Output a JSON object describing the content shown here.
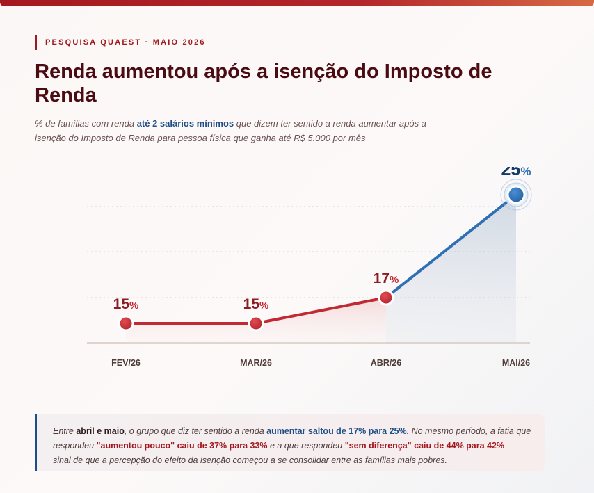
{
  "header": {
    "kicker": "PESQUISA QUAEST · MAIO 2026",
    "title": "Renda aumentou após a isenção do Imposto de Renda",
    "subtitle_pre": "% de famílias com renda ",
    "subtitle_highlight": "até 2 salários mínimos",
    "subtitle_post": " que dizem ter sentido a renda aumentar após a isenção do Imposto de Renda para pessoa física que ganha até R$ 5.000 por mês"
  },
  "chart_data": {
    "type": "line",
    "categories": [
      "FEV/26",
      "MAR/26",
      "ABR/26",
      "MAI/26"
    ],
    "values": [
      15,
      15,
      17,
      25
    ],
    "unit": "%",
    "title": "Renda aumentou após a isenção do Imposto de Renda",
    "xlabel": "",
    "ylabel": "",
    "grid": true,
    "colors": {
      "red": "#c22a33",
      "blue": "#2f6fb3",
      "label_red": "#8d1b22",
      "label_blue": "#163a66"
    }
  },
  "callout": {
    "t1": "Entre ",
    "t2": "abril e maio",
    "t3": ", o grupo que diz ter sentido a renda ",
    "t4": "aumentar saltou de 17% para 25%",
    "t5": ". No mesmo período, a fatia que respondeu ",
    "t6": "\"aumentou pouco\" caiu de 37% para 33%",
    "t7": " e a que respondeu ",
    "t8": "\"sem diferença\" caiu de 44% para 42%",
    "t9": " — sinal de que a percepção do efeito da isenção começou a se consolidar entre as famílias mais pobres."
  }
}
